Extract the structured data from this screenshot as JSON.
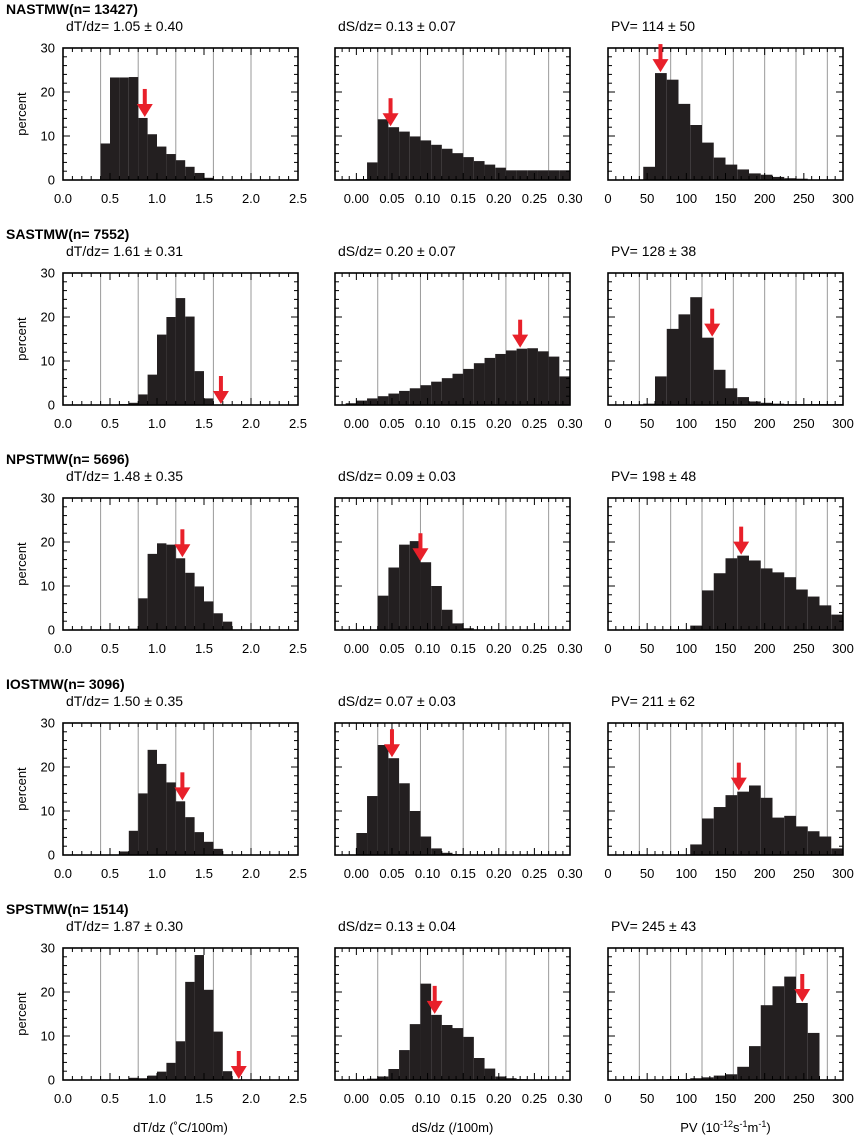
{
  "chart_data": {
    "type": "histogram-grid",
    "rows": [
      {
        "title": "NASTMW(n= 13427)",
        "panels": [
          {
            "stat": "dT/dz= 1.05 ± 0.40",
            "x0": 0.0,
            "binw": 0.1,
            "values": [
              0,
              0,
              0,
              0,
              8.3,
              23.3,
              23.3,
              23.4,
              14.1,
              10.4,
              7.6,
              5.9,
              4.5,
              3.0,
              1.6,
              0.5,
              0,
              0,
              0,
              0,
              0,
              0,
              0,
              0,
              0
            ],
            "arrow": 0.87
          },
          {
            "stat": "dS/dz= 0.13 ± 0.07",
            "x0": -0.03,
            "binw": 0.015,
            "values": [
              0,
              0.1,
              0.2,
              4.0,
              13.8,
              12.0,
              11.0,
              9.9,
              9.0,
              8.0,
              7.1,
              6.1,
              5.2,
              4.3,
              3.5,
              2.8,
              2.2,
              2.2,
              2.2,
              2.2,
              2.2,
              2.2
            ],
            "arrow": 0.048
          },
          {
            "stat": "PV= 114 ± 50",
            "x0": 0,
            "binw": 15,
            "values": [
              0,
              0,
              0,
              3.0,
              24.3,
              22.8,
              17.3,
              12.5,
              8.5,
              5.1,
              3.5,
              2.4,
              1.5,
              1.2,
              0.7,
              0.4,
              0.3,
              0,
              0,
              0
            ],
            "arrow": 67
          }
        ]
      },
      {
        "title": "SASTMW(n= 7552)",
        "panels": [
          {
            "stat": "dT/dz= 1.61 ± 0.31",
            "x0": 0.0,
            "binw": 0.1,
            "values": [
              0,
              0,
              0,
              0,
              0,
              0,
              0.2,
              0.5,
              2.4,
              6.9,
              16.0,
              20.0,
              24.3,
              20.1,
              7.7,
              1.5,
              0,
              0,
              0,
              0,
              0,
              0,
              0,
              0,
              0
            ],
            "arrow": 1.68
          },
          {
            "stat": "dS/dz= 0.20 ± 0.07",
            "x0": -0.03,
            "binw": 0.015,
            "values": [
              0,
              0.4,
              1.0,
              1.5,
              2.0,
              2.6,
              3.2,
              3.8,
              4.5,
              5.3,
              6.1,
              7.1,
              8.2,
              9.5,
              10.7,
              11.6,
              12.4,
              12.8,
              12.9,
              12.2,
              11.0,
              6.5
            ],
            "arrow": 0.23
          },
          {
            "stat": "PV= 128 ± 38",
            "x0": 0,
            "binw": 15,
            "values": [
              0,
              0,
              0,
              0.3,
              6.5,
              17.3,
              20.6,
              24.5,
              15.3,
              8.0,
              3.8,
              1.8,
              0.8,
              0.5,
              0.3,
              0.2,
              0.2,
              0.2,
              0.2,
              0.2
            ],
            "arrow": 133
          }
        ]
      },
      {
        "title": "NPSTMW(n= 5696)",
        "panels": [
          {
            "stat": "dT/dz= 1.48 ± 0.35",
            "x0": 0.0,
            "binw": 0.1,
            "values": [
              0,
              0,
              0,
              0,
              0,
              0,
              0,
              0.3,
              7.2,
              17.3,
              19.7,
              19.4,
              16.3,
              13.0,
              9.9,
              6.5,
              3.8,
              1.9,
              0,
              0,
              0,
              0,
              0,
              0,
              0
            ],
            "arrow": 1.27
          },
          {
            "stat": "dS/dz= 0.09 ± 0.03",
            "x0": -0.03,
            "binw": 0.015,
            "values": [
              0,
              0,
              0,
              0,
              7.8,
              14.2,
              19.4,
              20.2,
              15.4,
              10.0,
              4.6,
              1.5,
              0.4,
              0.1,
              0,
              0,
              0,
              0,
              0,
              0,
              0,
              0
            ],
            "arrow": 0.09
          },
          {
            "stat": "PV= 198 ± 48",
            "x0": 0,
            "binw": 15,
            "values": [
              0,
              0,
              0,
              0,
              0,
              0,
              0,
              1.0,
              9.0,
              12.9,
              16.3,
              16.9,
              15.8,
              14.0,
              13.1,
              12.0,
              9.2,
              7.6,
              5.6,
              3.5
            ],
            "arrow": 170
          }
        ]
      },
      {
        "title": "IOSTMW(n= 3096)",
        "panels": [
          {
            "stat": "dT/dz= 1.50 ± 0.35",
            "x0": 0.0,
            "binw": 0.1,
            "values": [
              0,
              0,
              0,
              0,
              0,
              0,
              0.8,
              5.5,
              14.0,
              23.9,
              20.7,
              16.5,
              12.2,
              8.6,
              5.2,
              3.0,
              1.4,
              0,
              0,
              0,
              0,
              0,
              0,
              0,
              0
            ],
            "arrow": 1.27
          },
          {
            "stat": "dS/dz= 0.07 ± 0.03",
            "x0": -0.03,
            "binw": 0.015,
            "values": [
              0,
              0,
              5.0,
              13.4,
              25.0,
              22.0,
              16.3,
              10.0,
              4.2,
              1.5,
              0.5,
              0.2,
              0.1,
              0,
              0,
              0,
              0,
              0,
              0,
              0,
              0,
              0
            ],
            "arrow": 0.05
          },
          {
            "stat": "PV= 211 ± 62",
            "x0": 0,
            "binw": 15,
            "values": [
              0,
              0,
              0,
              0,
              0,
              0,
              0,
              2.4,
              8.3,
              10.9,
              13.6,
              14.4,
              15.8,
              13.0,
              8.5,
              8.9,
              6.5,
              5.4,
              4.2,
              1.5
            ],
            "arrow": 167
          }
        ]
      },
      {
        "title": "SPSTMW(n= 1514)",
        "panels": [
          {
            "stat": "dT/dz= 1.87 ± 0.30",
            "x0": 0.0,
            "binw": 0.1,
            "values": [
              0,
              0,
              0,
              0,
              0,
              0,
              0,
              0.5,
              0.4,
              1.0,
              1.9,
              3.9,
              8.8,
              22.3,
              28.4,
              20.5,
              11.0,
              2.0,
              0,
              0,
              0,
              0,
              0,
              0,
              0
            ],
            "arrow": 1.87
          },
          {
            "stat": "dS/dz= 0.13 ± 0.04",
            "x0": -0.03,
            "binw": 0.015,
            "values": [
              0,
              0,
              0,
              0.3,
              0.8,
              2.5,
              6.8,
              12.7,
              21.9,
              14.8,
              12.5,
              11.8,
              9.8,
              5.0,
              2.6,
              0.8,
              0.4,
              0.2,
              0.1,
              0,
              0,
              0
            ],
            "arrow": 0.11
          },
          {
            "stat": "PV= 245 ± 43",
            "x0": 0,
            "binw": 15,
            "values": [
              0,
              0,
              0,
              0,
              0,
              0.2,
              0.2,
              0.4,
              0.6,
              1.0,
              1.3,
              3.0,
              7.7,
              17.0,
              21.3,
              23.5,
              17.5,
              10.7,
              0,
              0
            ],
            "arrow": 248
          }
        ]
      }
    ],
    "columns": [
      {
        "xlim": [
          0,
          2.5
        ],
        "ticks": [
          "0.0",
          "0.5",
          "1.0",
          "1.5",
          "2.0",
          "2.5"
        ],
        "tick_values": [
          0,
          0.5,
          1,
          1.5,
          2,
          2.5
        ],
        "grid": [
          0.4,
          0.8,
          1.2,
          1.6,
          2.0
        ],
        "xlabel": "dT/dz (˚C/100m)"
      },
      {
        "xlim": [
          -0.03,
          0.3
        ],
        "ticks": [
          "0.00",
          "0.05",
          "0.10",
          "0.15",
          "0.20",
          "0.25",
          "0.30"
        ],
        "tick_values": [
          0,
          0.05,
          0.1,
          0.15,
          0.2,
          0.25,
          0.3
        ],
        "grid": [
          0.03,
          0.09,
          0.15,
          0.21,
          0.27
        ],
        "xlabel": "dS/dz (/100m)"
      },
      {
        "xlim": [
          0,
          300
        ],
        "ticks": [
          "0",
          "50",
          "100",
          "150",
          "200",
          "250",
          "300"
        ],
        "tick_values": [
          0,
          50,
          100,
          150,
          200,
          250,
          300
        ],
        "grid": [
          40,
          80,
          120,
          160,
          200,
          240,
          280
        ],
        "xlabel_main": "PV (10",
        "xlabel_exp1": "-12",
        "xlabel_mid1": "s",
        "xlabel_exp2": "-1",
        "xlabel_mid2": "m",
        "xlabel_exp3": "-1",
        "xlabel_end": ")"
      }
    ],
    "ylim": [
      0,
      30
    ],
    "yticks": [
      "0",
      "10",
      "20",
      "30"
    ],
    "ylabel": "percent",
    "colors": {
      "bars": "#231f20",
      "arrow": "#e8202a",
      "grid": "#9a9a9a"
    }
  }
}
